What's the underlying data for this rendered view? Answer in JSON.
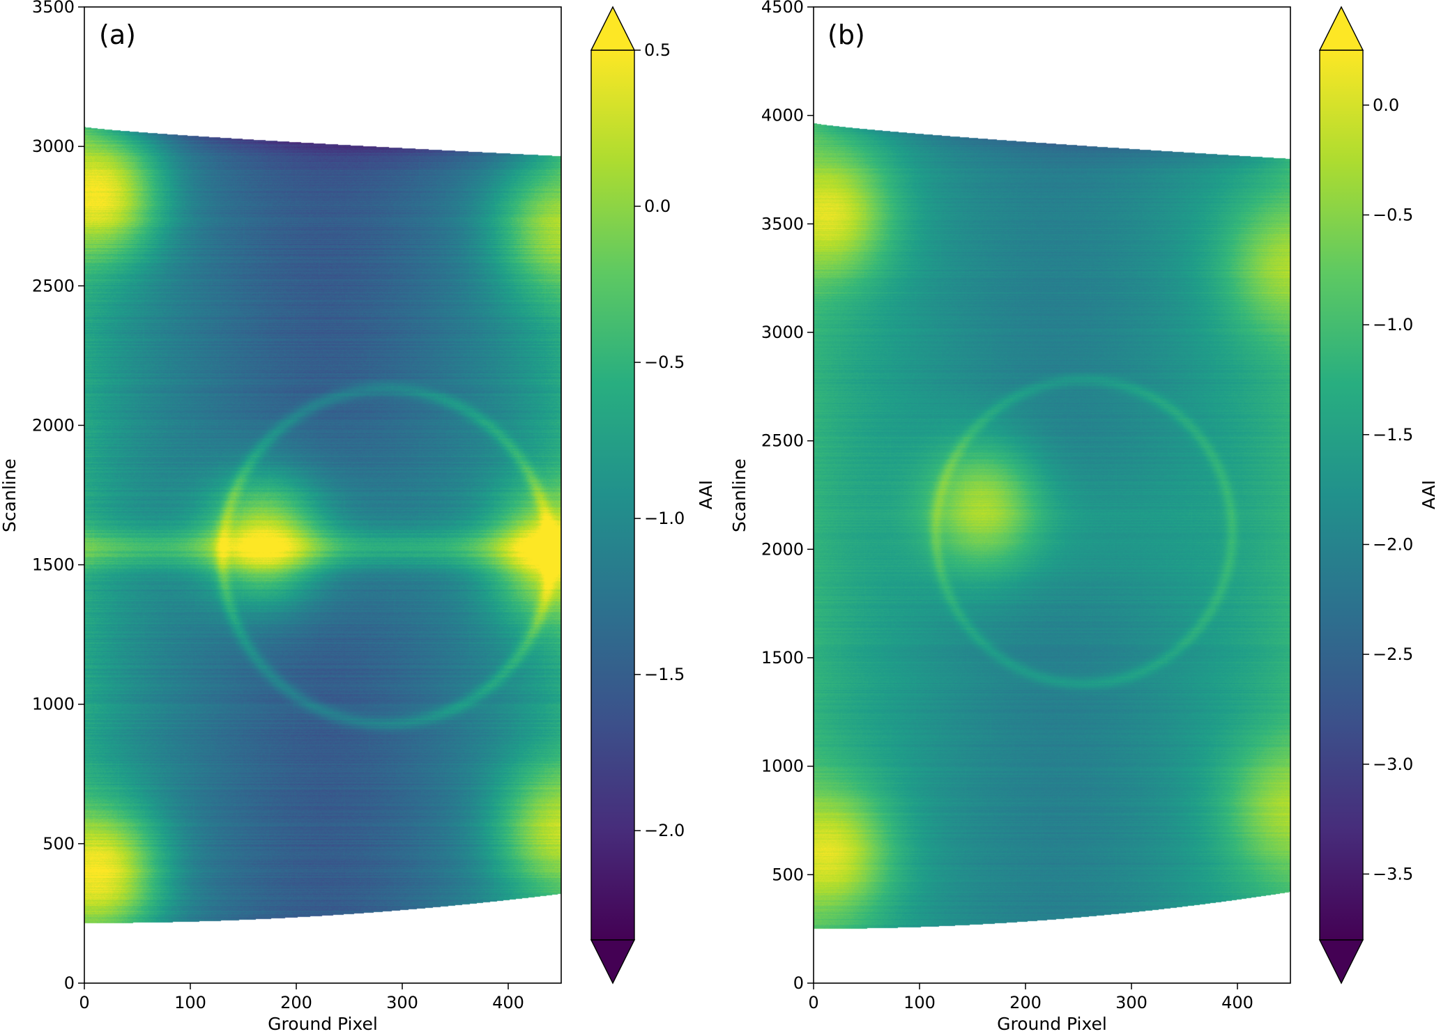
{
  "chart_data": [
    {
      "type": "heatmap",
      "panel_label": "(a)",
      "xlabel": "Ground Pixel",
      "ylabel": "Scanline",
      "xlim": [
        0,
        450
      ],
      "ylim": [
        0,
        3500
      ],
      "xticks": [
        0,
        100,
        200,
        300,
        400
      ],
      "yticks": [
        0,
        500,
        1000,
        1500,
        2000,
        2500,
        3000,
        3500
      ],
      "colorbar": {
        "label": "AAI",
        "range": [
          -2.35,
          0.5
        ],
        "extend": "both",
        "ticks": [
          0.5,
          0.0,
          -0.5,
          -1.0,
          -1.5,
          -2.0
        ],
        "tick_labels": [
          "0.5",
          "0.0",
          "−0.5",
          "−1.0",
          "−1.5",
          "−2.0"
        ]
      },
      "swath": {
        "top_scanline_at_x0": 3070,
        "top_scanline_at_x450": 2965,
        "bottom_scanline_at_x0": 215,
        "bottom_scanline_at_x450": 320
      },
      "features": {
        "ring_center": [
          285,
          1530
        ],
        "ring_radii": [
          155,
          600
        ],
        "hotspots": [
          [
            20,
            2830,
            0.3
          ],
          [
            20,
            400,
            0.3
          ],
          [
            170,
            1590,
            0.35
          ],
          [
            440,
            1540,
            0.15
          ],
          [
            440,
            2700,
            -0.2
          ],
          [
            440,
            550,
            -0.1
          ]
        ],
        "band_scanline": 1560
      }
    },
    {
      "type": "heatmap",
      "panel_label": "(b)",
      "xlabel": "Ground Pixel",
      "ylabel": "Scanline",
      "xlim": [
        0,
        450
      ],
      "ylim": [
        0,
        4500
      ],
      "xticks": [
        0,
        100,
        200,
        300,
        400
      ],
      "yticks": [
        0,
        500,
        1000,
        1500,
        2000,
        2500,
        3000,
        3500,
        4000,
        4500
      ],
      "colorbar": {
        "label": "AAI",
        "range": [
          -3.8,
          0.25
        ],
        "extend": "both",
        "ticks": [
          0.0,
          -0.5,
          -1.0,
          -1.5,
          -2.0,
          -2.5,
          -3.0,
          -3.5
        ],
        "tick_labels": [
          "0.0",
          "−0.5",
          "−1.0",
          "−1.5",
          "−2.0",
          "−2.5",
          "−3.0",
          "−3.5"
        ]
      },
      "swath": {
        "top_scanline_at_x0": 3965,
        "top_scanline_at_x450": 3800,
        "bottom_scanline_at_x0": 250,
        "bottom_scanline_at_x450": 420
      },
      "features": {
        "ring_center": [
          255,
          2080
        ],
        "ring_radii": [
          140,
          700
        ],
        "hotspots": [
          [
            20,
            3550,
            -0.1
          ],
          [
            20,
            600,
            -0.1
          ],
          [
            160,
            2200,
            -0.05
          ],
          [
            440,
            3300,
            -0.6
          ],
          [
            440,
            800,
            -0.6
          ]
        ],
        "band_scanline": 0
      }
    }
  ]
}
